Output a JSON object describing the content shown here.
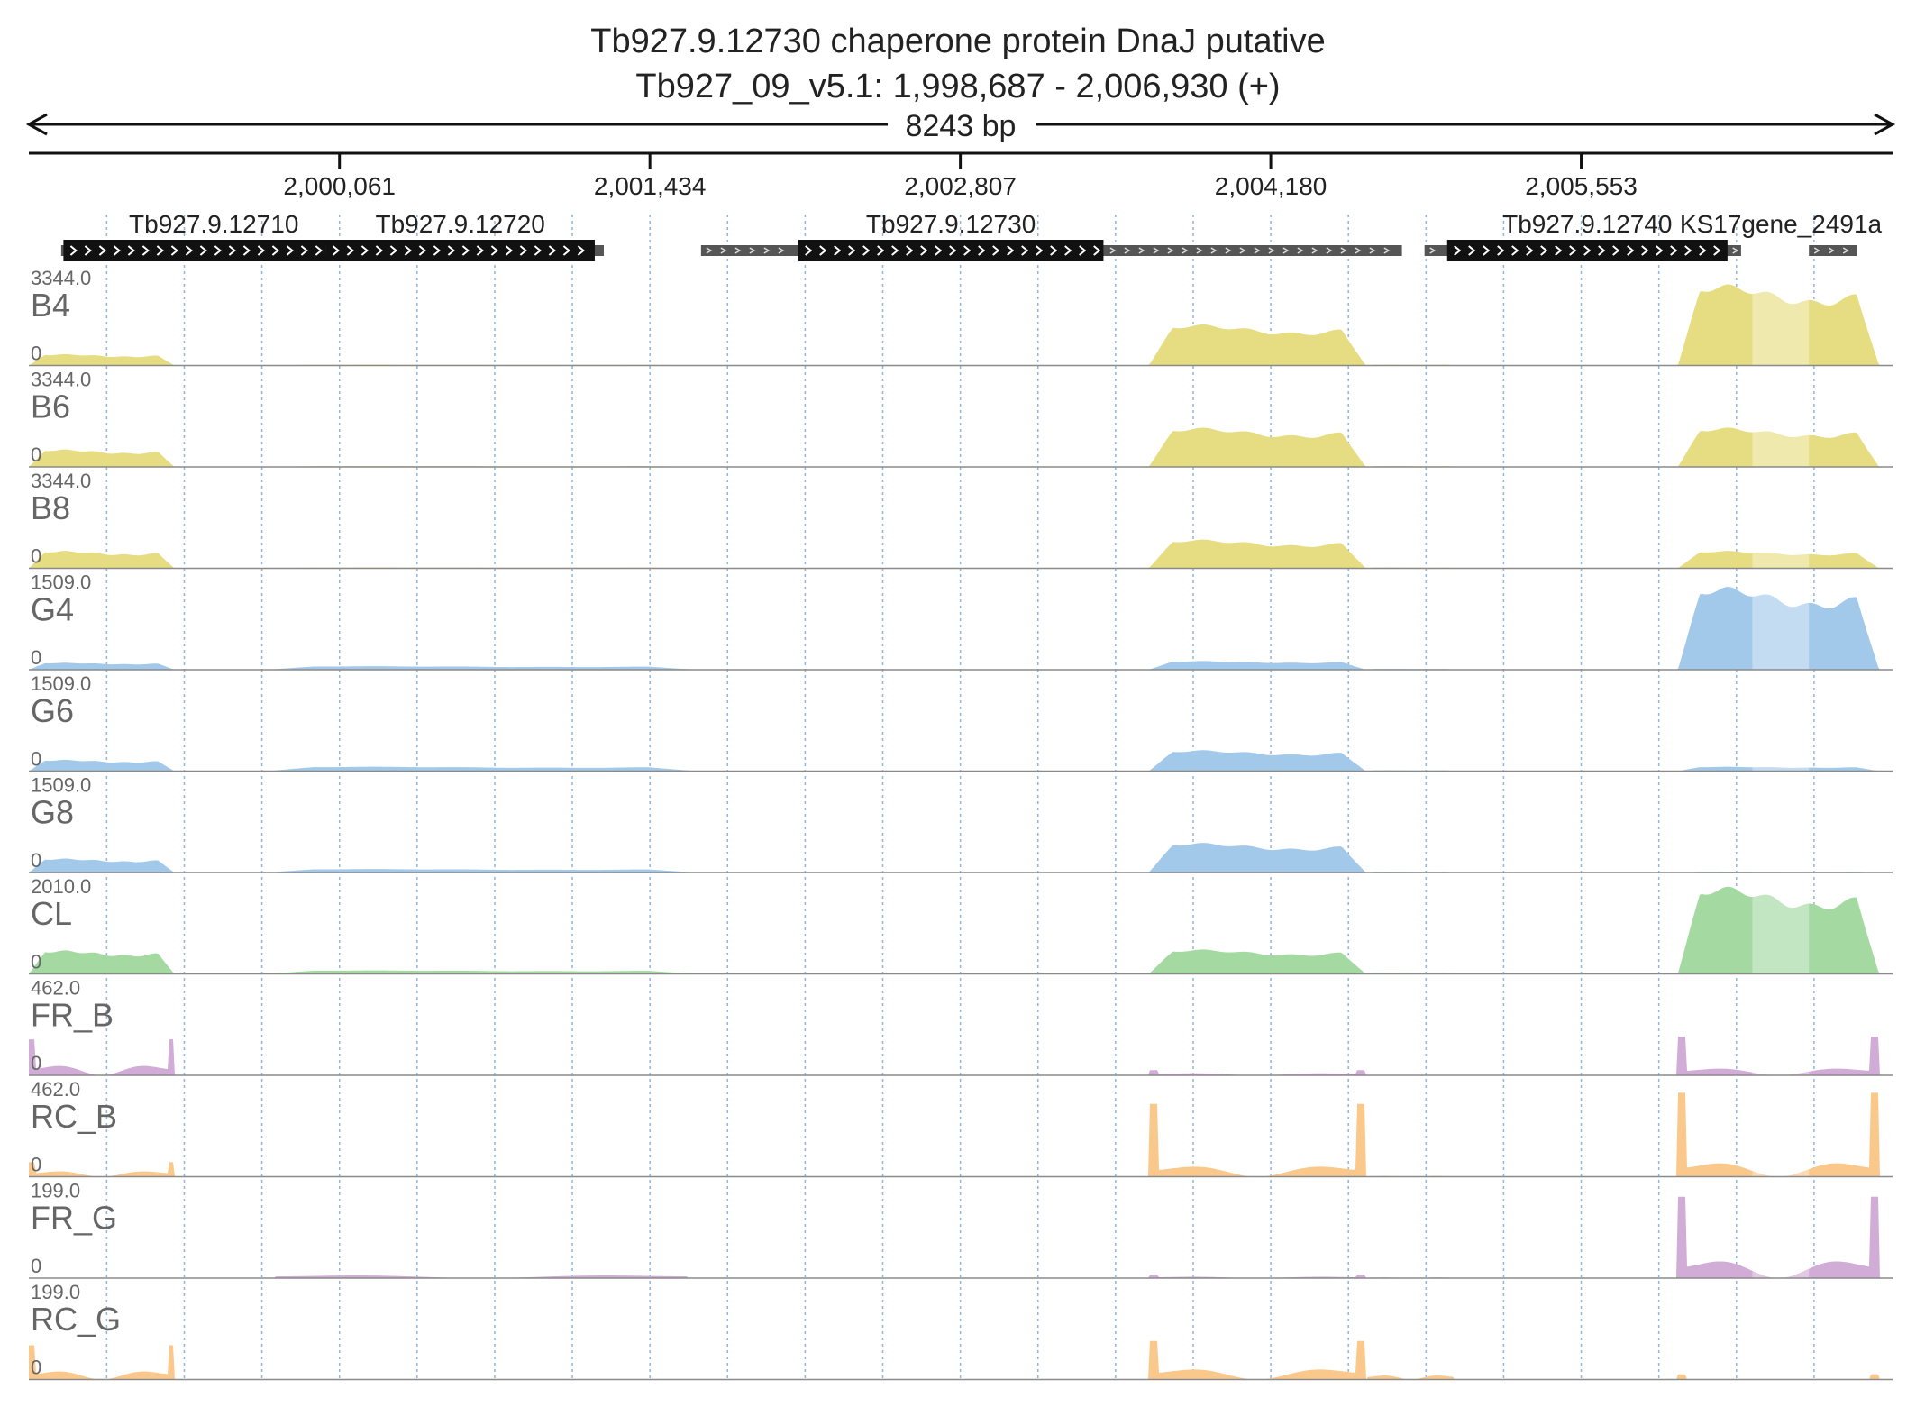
{
  "header": {
    "title": "Tb927.9.12730  chaperone protein DnaJ  putative",
    "location": "Tb927_09_v5.1: 1,998,687 - 2,006,930 (+)",
    "span_label": "8243 bp"
  },
  "chart_data": {
    "type": "area",
    "title": "Tb927.9.12730  chaperone protein DnaJ  putative",
    "xlim": [
      1998687,
      2006930
    ],
    "x_ticks": [
      2000061,
      2001434,
      2002807,
      2004180,
      2005553
    ],
    "x_tick_labels": [
      "2,000,061",
      "2,001,434",
      "2,002,807",
      "2,004,180",
      "2,005,553"
    ],
    "grid": true,
    "genes": [
      {
        "name": "Tb927.9.12710",
        "start": 1998830,
        "end": 2000380,
        "cds": [
          1998840,
          2000170
        ],
        "strand": "+"
      },
      {
        "name": "Tb927.9.12720",
        "start": 2000000,
        "end": 2001230,
        "cds": [
          2000000,
          2001190
        ],
        "strand": "+"
      },
      {
        "name": "Tb927.9.12730",
        "start": 2001660,
        "end": 2004760,
        "cds": [
          2002090,
          2003440
        ],
        "strand": "+"
      },
      {
        "name": "Tb927.9.12740",
        "start": 2004860,
        "end": 2006260,
        "cds": [
          2004960,
          2006200
        ],
        "strand": "+"
      },
      {
        "name": "KS17gene_2491a",
        "start": 2006560,
        "end": 2007060,
        "cds": null,
        "strand": "+"
      }
    ],
    "tracks": [
      {
        "name": "B4",
        "max_label": "3344.0",
        "min_label": "0",
        "max": 3344,
        "color": "#e6dd82",
        "profile": "rna",
        "scale": {
          "a": 0.13,
          "b": 0.01,
          "c": 0.47,
          "d": 0.01,
          "e": 0.93
        }
      },
      {
        "name": "B6",
        "max_label": "3344.0",
        "min_label": "0",
        "max": 3344,
        "color": "#e6dd82",
        "profile": "rna",
        "scale": {
          "a": 0.2,
          "b": 0.01,
          "c": 0.45,
          "d": 0.01,
          "e": 0.45
        }
      },
      {
        "name": "B8",
        "max_label": "3344.0",
        "min_label": "0",
        "max": 3344,
        "color": "#e6dd82",
        "profile": "rna",
        "scale": {
          "a": 0.2,
          "b": 0.01,
          "c": 0.33,
          "d": 0.01,
          "e": 0.2
        }
      },
      {
        "name": "G4",
        "max_label": "1509.0",
        "min_label": "0",
        "max": 1509,
        "color": "#a3c9ea",
        "profile": "rna",
        "scale": {
          "a": 0.08,
          "b": 0.04,
          "c": 0.1,
          "d": 0.01,
          "e": 0.95
        }
      },
      {
        "name": "G6",
        "max_label": "1509.0",
        "min_label": "0",
        "max": 1509,
        "color": "#a3c9ea",
        "profile": "rna",
        "scale": {
          "a": 0.13,
          "b": 0.05,
          "c": 0.24,
          "d": 0.01,
          "e": 0.05
        }
      },
      {
        "name": "G8",
        "max_label": "1509.0",
        "min_label": "0",
        "max": 1509,
        "color": "#a3c9ea",
        "profile": "rna",
        "scale": {
          "a": 0.16,
          "b": 0.04,
          "c": 0.34,
          "d": 0.01,
          "e": 0.01
        }
      },
      {
        "name": "CL",
        "max_label": "2010.0",
        "min_label": "0",
        "max": 2010,
        "color": "#a4d9a2",
        "profile": "rna",
        "scale": {
          "a": 0.27,
          "b": 0.04,
          "c": 0.28,
          "d": 0.01,
          "e": 1.0
        }
      },
      {
        "name": "FR_B",
        "max_label": "462.0",
        "min_label": "0",
        "max": 462,
        "color": "#d1acd6",
        "profile": "edge",
        "scale": {
          "a": 0.14,
          "b": 0.0,
          "c": 0.03,
          "d": 0.0,
          "e": 0.1,
          "spikeA": 0.42,
          "spikeC": 0.06,
          "spikeE": 0.45
        }
      },
      {
        "name": "RC_B",
        "max_label": "462.0",
        "min_label": "0",
        "max": 462,
        "color": "#fbc88c",
        "profile": "edge",
        "scale": {
          "a": 0.08,
          "b": 0.0,
          "c": 0.15,
          "d": 0.01,
          "e": 0.2,
          "spikeA": 0.17,
          "spikeC": 0.85,
          "spikeE": 0.98
        }
      },
      {
        "name": "FR_G",
        "max_label": "199.0",
        "min_label": "0",
        "max": 199,
        "color": "#d1acd6",
        "profile": "edge",
        "scale": {
          "a": 0.0,
          "b": 0.04,
          "c": 0.02,
          "d": 0.01,
          "e": 0.25,
          "spikeA": 0.0,
          "spikeC": 0.04,
          "spikeE": 0.95
        }
      },
      {
        "name": "RC_G",
        "max_label": "199.0",
        "min_label": "0",
        "max": 199,
        "color": "#fbc88c",
        "profile": "edge",
        "scale": {
          "a": 0.12,
          "b": 0.0,
          "c": 0.15,
          "d": 0.06,
          "e": 0.0,
          "spikeA": 0.4,
          "spikeC": 0.45,
          "spikeE": 0.06
        }
      }
    ]
  }
}
